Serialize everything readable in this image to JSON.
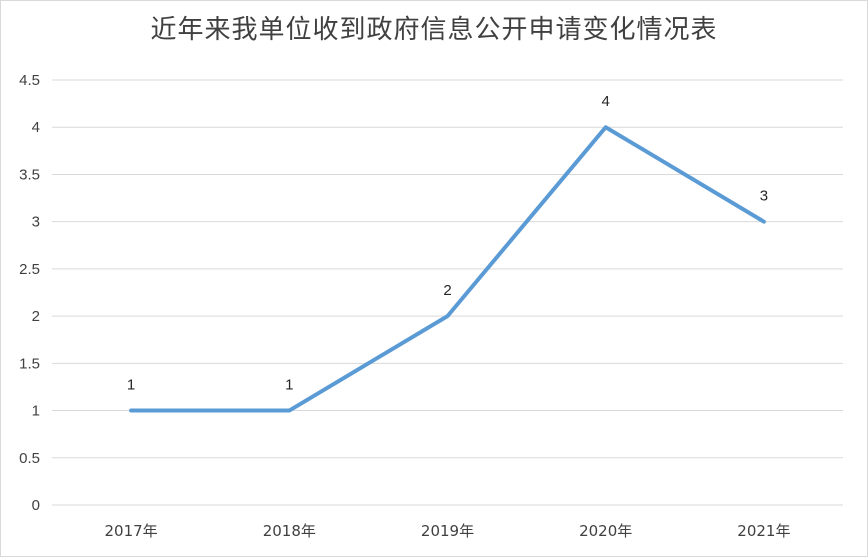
{
  "chart_data": {
    "type": "line",
    "title": "近年来我单位收到政府信息公开申请变化情况表",
    "categories": [
      "2017年",
      "2018年",
      "2019年",
      "2020年",
      "2021年"
    ],
    "series": [
      {
        "values": [
          1,
          1,
          2,
          4,
          3
        ]
      }
    ],
    "ylim": [
      0,
      4.5
    ],
    "yticks": [
      "0",
      "0.5",
      "1",
      "1.5",
      "2",
      "2.5",
      "3",
      "3.5",
      "4",
      "4.5"
    ],
    "grid": true,
    "legend": "none",
    "data_labels": [
      "1",
      "1",
      "2",
      "4",
      "3"
    ],
    "colors": {
      "line": "#5b9bd5",
      "grid": "#d9d9d9",
      "text": "#404040"
    }
  }
}
